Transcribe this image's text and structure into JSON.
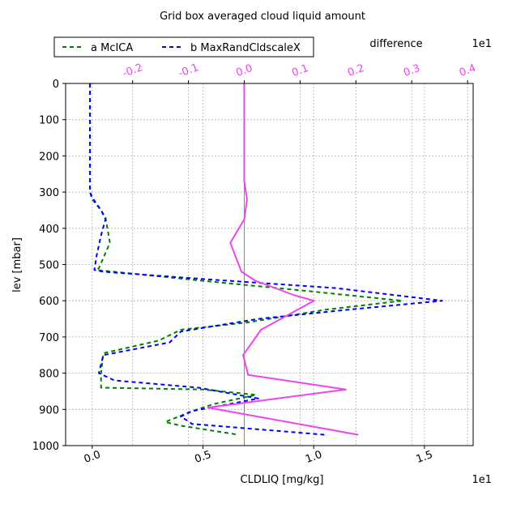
{
  "chart_data": {
    "type": "line",
    "title": "Grid box averaged cloud liquid amount",
    "xlabel": "CLDLIQ [mg/kg]",
    "ylabel": "lev [mbar]",
    "x_multiplier": "1e1",
    "top_axis_label": "difference",
    "top_axis_multiplier": "1e1",
    "xlim": [
      -0.12,
      1.72
    ],
    "ylim": [
      1000,
      0
    ],
    "top_xlim": [
      -0.32,
      0.41
    ],
    "x_ticks": [
      0.0,
      0.5,
      1.0,
      1.5
    ],
    "x_tick_labels": [
      "0.0",
      "0.5",
      "1.0",
      "1.5"
    ],
    "y_ticks": [
      0,
      100,
      200,
      300,
      400,
      500,
      600,
      700,
      800,
      900,
      1000
    ],
    "y_tick_labels": [
      "0",
      "100",
      "200",
      "300",
      "400",
      "500",
      "600",
      "700",
      "800",
      "900",
      "1000"
    ],
    "top_ticks": [
      -0.2,
      -0.1,
      0.0,
      0.1,
      0.2,
      0.3,
      0.4
    ],
    "top_tick_labels": [
      "-0.2",
      "-0.1",
      "0.0",
      "0.1",
      "0.2",
      "0.3",
      "0.4"
    ],
    "grid": true,
    "legend_position": "top-left, above plot",
    "series": [
      {
        "name": "a McICA",
        "color": "#008000",
        "style": "dashed",
        "axis": "bottom",
        "points": [
          [
            -0.01,
            0
          ],
          [
            -0.01,
            100
          ],
          [
            -0.01,
            200
          ],
          [
            -0.01,
            300
          ],
          [
            0.0,
            320
          ],
          [
            0.04,
            350
          ],
          [
            0.06,
            370
          ],
          [
            0.08,
            440
          ],
          [
            0.03,
            510
          ],
          [
            0.02,
            515
          ],
          [
            0.5,
            545
          ],
          [
            1.0,
            575
          ],
          [
            1.4,
            600
          ],
          [
            1.05,
            625
          ],
          [
            0.7,
            660
          ],
          [
            0.4,
            680
          ],
          [
            0.3,
            710
          ],
          [
            0.05,
            745
          ],
          [
            0.04,
            800
          ],
          [
            0.04,
            840
          ],
          [
            0.5,
            845
          ],
          [
            0.74,
            860
          ],
          [
            0.55,
            885
          ],
          [
            0.45,
            905
          ],
          [
            0.33,
            935
          ],
          [
            0.4,
            945
          ],
          [
            0.66,
            970
          ]
        ]
      },
      {
        "name": "b MaxRandCldscaleX",
        "color": "#0000ff",
        "style": "dashed",
        "axis": "bottom",
        "points": [
          [
            -0.01,
            0
          ],
          [
            -0.01,
            100
          ],
          [
            -0.01,
            200
          ],
          [
            -0.01,
            300
          ],
          [
            0.0,
            315
          ],
          [
            0.04,
            350
          ],
          [
            0.06,
            375
          ],
          [
            0.04,
            420
          ],
          [
            0.02,
            475
          ],
          [
            0.01,
            515
          ],
          [
            0.05,
            520
          ],
          [
            0.5,
            540
          ],
          [
            1.1,
            565
          ],
          [
            1.58,
            600
          ],
          [
            1.15,
            625
          ],
          [
            0.75,
            650
          ],
          [
            0.4,
            685
          ],
          [
            0.35,
            715
          ],
          [
            0.05,
            750
          ],
          [
            0.03,
            800
          ],
          [
            0.1,
            820
          ],
          [
            0.48,
            840
          ],
          [
            0.75,
            870
          ],
          [
            0.45,
            905
          ],
          [
            0.4,
            920
          ],
          [
            0.44,
            935
          ],
          [
            0.45,
            940
          ],
          [
            1.05,
            970
          ]
        ]
      },
      {
        "name": "difference",
        "color": "#ee44ee",
        "style": "solid",
        "axis": "top",
        "points": [
          [
            0.0,
            0
          ],
          [
            0.0,
            100
          ],
          [
            0.0,
            270
          ],
          [
            0.005,
            320
          ],
          [
            0.0,
            375
          ],
          [
            -0.025,
            440
          ],
          [
            -0.005,
            520
          ],
          [
            0.02,
            545
          ],
          [
            0.09,
            585
          ],
          [
            0.125,
            600
          ],
          [
            0.03,
            680
          ],
          [
            -0.002,
            750
          ],
          [
            0.007,
            805
          ],
          [
            0.182,
            845
          ],
          [
            -0.065,
            895
          ],
          [
            0.204,
            970
          ]
        ]
      }
    ],
    "reference_line": {
      "axis": "top",
      "x": 0.0,
      "color": "#dd4444"
    }
  }
}
